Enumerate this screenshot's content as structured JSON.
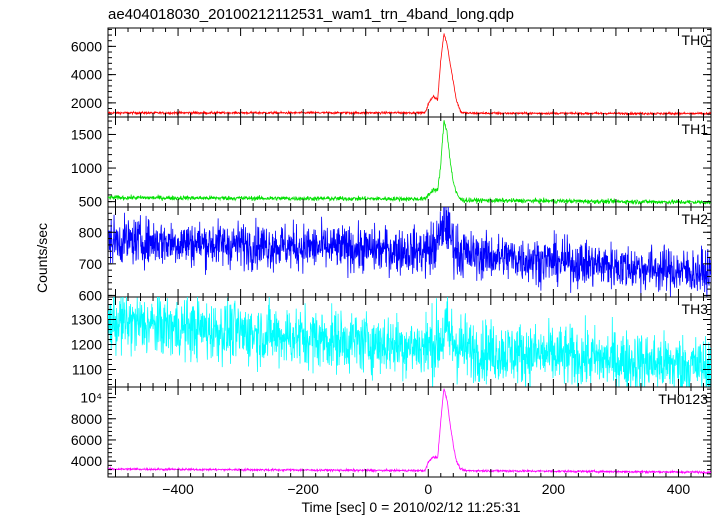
{
  "title": "ae404018030_20100212112531_wam1_trn_4band_long.qdp",
  "chart_data": {
    "type": "line",
    "title": "ae404018030_20100212112531_wam1_trn_4band_long.qdp",
    "xlabel": "Time [sec] 0 = 2010/02/12 11:25:31",
    "ylabel": "Counts/sec",
    "xlim": [
      -512,
      452
    ],
    "x_ticks": [
      -400,
      -200,
      0,
      200,
      400
    ],
    "x_tick_labels": [
      "−400",
      "−200",
      "0",
      "200",
      "400"
    ],
    "grid": false,
    "panels": [
      {
        "name": "TH0",
        "color": "#ff0000",
        "ylim": [
          1000,
          7300
        ],
        "y_ticks": [
          2000,
          4000,
          6000
        ],
        "y_tick_labels": [
          "2000",
          "4000",
          "6000"
        ],
        "baseline_start": 1290,
        "baseline_end": 1240,
        "noise": 70,
        "series": {
          "x": [
            -512,
            -5,
            0,
            8,
            15,
            20,
            25,
            30,
            35,
            40,
            45,
            52,
            60,
            452
          ],
          "y": [
            1290,
            1300,
            1900,
            2500,
            2200,
            5000,
            6900,
            6200,
            4800,
            3500,
            2200,
            1350,
            1270,
            1240
          ]
        }
      },
      {
        "name": "TH1",
        "color": "#00e000",
        "ylim": [
          420,
          1760
        ],
        "y_ticks": [
          500,
          1000,
          1500
        ],
        "y_tick_labels": [
          "500",
          "1000",
          "1500"
        ],
        "baseline_start": 560,
        "baseline_end": 490,
        "noise": 30,
        "series": {
          "x": [
            -512,
            -5,
            0,
            8,
            15,
            20,
            25,
            30,
            35,
            40,
            45,
            52,
            60,
            452
          ],
          "y": [
            560,
            540,
            600,
            680,
            660,
            1050,
            1700,
            1550,
            1100,
            800,
            620,
            530,
            520,
            490
          ]
        }
      },
      {
        "name": "TH2",
        "color": "#0000ff",
        "ylim": [
          595,
          880
        ],
        "y_ticks": [
          600,
          700,
          800
        ],
        "y_tick_labels": [
          "600",
          "700",
          "800"
        ],
        "baseline_start": 775,
        "baseline_end": 670,
        "noise": 65,
        "series": {
          "x": [
            -512,
            -5,
            0,
            10,
            20,
            25,
            30,
            35,
            45,
            60,
            452
          ],
          "y": [
            775,
            740,
            745,
            750,
            790,
            840,
            820,
            790,
            745,
            730,
            670
          ]
        }
      },
      {
        "name": "TH3",
        "color": "#00ffff",
        "ylim": [
          1030,
          1390
        ],
        "y_ticks": [
          1100,
          1200,
          1300
        ],
        "y_tick_labels": [
          "1100",
          "1200",
          "1300"
        ],
        "baseline_start": 1290,
        "baseline_end": 1110,
        "noise": 110,
        "series": {
          "x": [
            -512,
            -5,
            0,
            15,
            25,
            30,
            40,
            60,
            452
          ],
          "y": [
            1290,
            1190,
            1195,
            1210,
            1240,
            1250,
            1210,
            1180,
            1110
          ]
        }
      },
      {
        "name": "TH0123",
        "color": "#ff00ff",
        "ylim": [
          2500,
          11000
        ],
        "y_ticks": [
          4000,
          6000,
          8000,
          10000
        ],
        "y_tick_labels": [
          "4000",
          "6000",
          "8000",
          "10⁴"
        ],
        "baseline_start": 3250,
        "baseline_end": 2950,
        "noise": 90,
        "series": {
          "x": [
            -512,
            -5,
            0,
            8,
            15,
            20,
            25,
            30,
            35,
            40,
            45,
            52,
            60,
            452
          ],
          "y": [
            3250,
            3100,
            3900,
            4400,
            4300,
            7800,
            10900,
            9800,
            7500,
            5500,
            4000,
            3200,
            3100,
            2950
          ]
        }
      }
    ]
  }
}
